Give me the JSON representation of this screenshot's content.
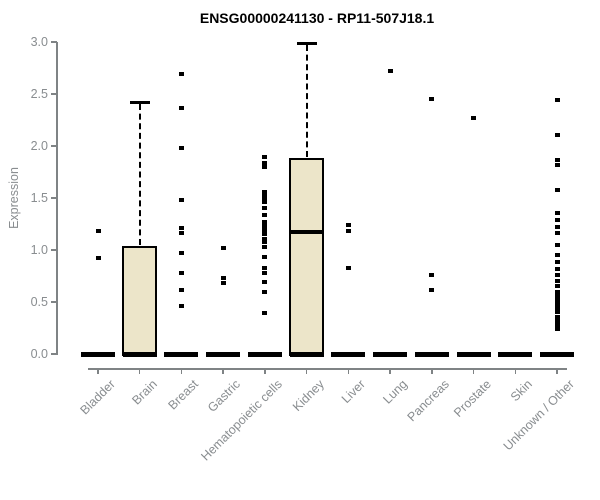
{
  "chart_data": {
    "type": "boxplot",
    "title": "ENSG00000241130 - RP11-507J18.1",
    "ylabel": "Expression",
    "xlabel": "",
    "ylim": [
      0.0,
      3.0
    ],
    "ytick_labels": [
      "0.0",
      "0.5",
      "1.0",
      "1.5",
      "2.0",
      "2.5",
      "3.0"
    ],
    "ytick_values": [
      0.0,
      0.5,
      1.0,
      1.5,
      2.0,
      2.5,
      3.0
    ],
    "grid": false,
    "legend": false,
    "categories": [
      "Bladder",
      "Brain",
      "Breast",
      "Gastric",
      "Hematopoietic cells",
      "Kidney",
      "Liver",
      "Lung",
      "Pancreas",
      "Prostate",
      "Skin",
      "Unknown / Other"
    ],
    "boxes": [
      {
        "category": "Bladder",
        "q1": 0,
        "median": 0,
        "q3": 0,
        "whisker_low": 0,
        "whisker_high": 0,
        "outliers": [
          1.18,
          0.92
        ]
      },
      {
        "category": "Brain",
        "q1": 0,
        "median": 0,
        "q3": 1.04,
        "whisker_low": 0,
        "whisker_high": 2.42,
        "outliers": []
      },
      {
        "category": "Breast",
        "q1": 0,
        "median": 0,
        "q3": 0,
        "whisker_low": 0,
        "whisker_high": 0,
        "outliers": [
          2.69,
          2.37,
          1.98,
          1.48,
          1.21,
          1.16,
          0.97,
          0.78,
          0.62,
          0.46
        ]
      },
      {
        "category": "Gastric",
        "q1": 0,
        "median": 0,
        "q3": 0,
        "whisker_low": 0,
        "whisker_high": 0,
        "outliers": [
          1.02,
          0.73,
          0.68
        ]
      },
      {
        "category": "Hematopoietic cells",
        "q1": 0,
        "median": 0,
        "q3": 0,
        "whisker_low": 0,
        "whisker_high": 0,
        "outliers": [
          1.89,
          1.84,
          1.8,
          1.56,
          1.52,
          1.48,
          1.46,
          1.4,
          1.34,
          1.27,
          1.24,
          1.21,
          1.19,
          1.15,
          1.11,
          1.08,
          1.03,
          0.93,
          0.83,
          0.78,
          0.69,
          0.6,
          0.39
        ]
      },
      {
        "category": "Kidney",
        "q1": 0,
        "median": 1.17,
        "q3": 1.88,
        "whisker_low": 0,
        "whisker_high": 2.99,
        "outliers": []
      },
      {
        "category": "Liver",
        "q1": 0,
        "median": 0,
        "q3": 0,
        "whisker_low": 0,
        "whisker_high": 0,
        "outliers": [
          1.24,
          1.18,
          0.83
        ]
      },
      {
        "category": "Lung",
        "q1": 0,
        "median": 0,
        "q3": 0,
        "whisker_low": 0,
        "whisker_high": 0,
        "outliers": [
          2.72
        ]
      },
      {
        "category": "Pancreas",
        "q1": 0,
        "median": 0,
        "q3": 0,
        "whisker_low": 0,
        "whisker_high": 0,
        "outliers": [
          2.45,
          0.76,
          0.62
        ]
      },
      {
        "category": "Prostate",
        "q1": 0,
        "median": 0,
        "q3": 0,
        "whisker_low": 0,
        "whisker_high": 0,
        "outliers": [
          2.27
        ]
      },
      {
        "category": "Skin",
        "q1": 0,
        "median": 0,
        "q3": 0,
        "whisker_low": 0,
        "whisker_high": 0,
        "outliers": []
      },
      {
        "category": "Unknown / Other",
        "q1": 0,
        "median": 0,
        "q3": 0,
        "whisker_low": 0,
        "whisker_high": 0,
        "outliers": [
          2.44,
          2.11,
          1.87,
          1.82,
          1.58,
          1.36,
          1.29,
          1.22,
          1.16,
          1.05,
          0.95,
          0.88,
          0.82,
          0.76,
          0.7,
          0.65,
          0.6,
          0.56,
          0.52,
          0.48,
          0.44,
          0.4,
          0.36,
          0.32,
          0.28,
          0.24
        ]
      }
    ],
    "colors": {
      "box_fill": "#ECE5C9",
      "box_stroke": "#000000",
      "median": "#000000",
      "outlier": "#000000",
      "axis": "#7f8385",
      "axis_text": "#898d90",
      "title": "#000000",
      "background": "#ffffff"
    }
  }
}
